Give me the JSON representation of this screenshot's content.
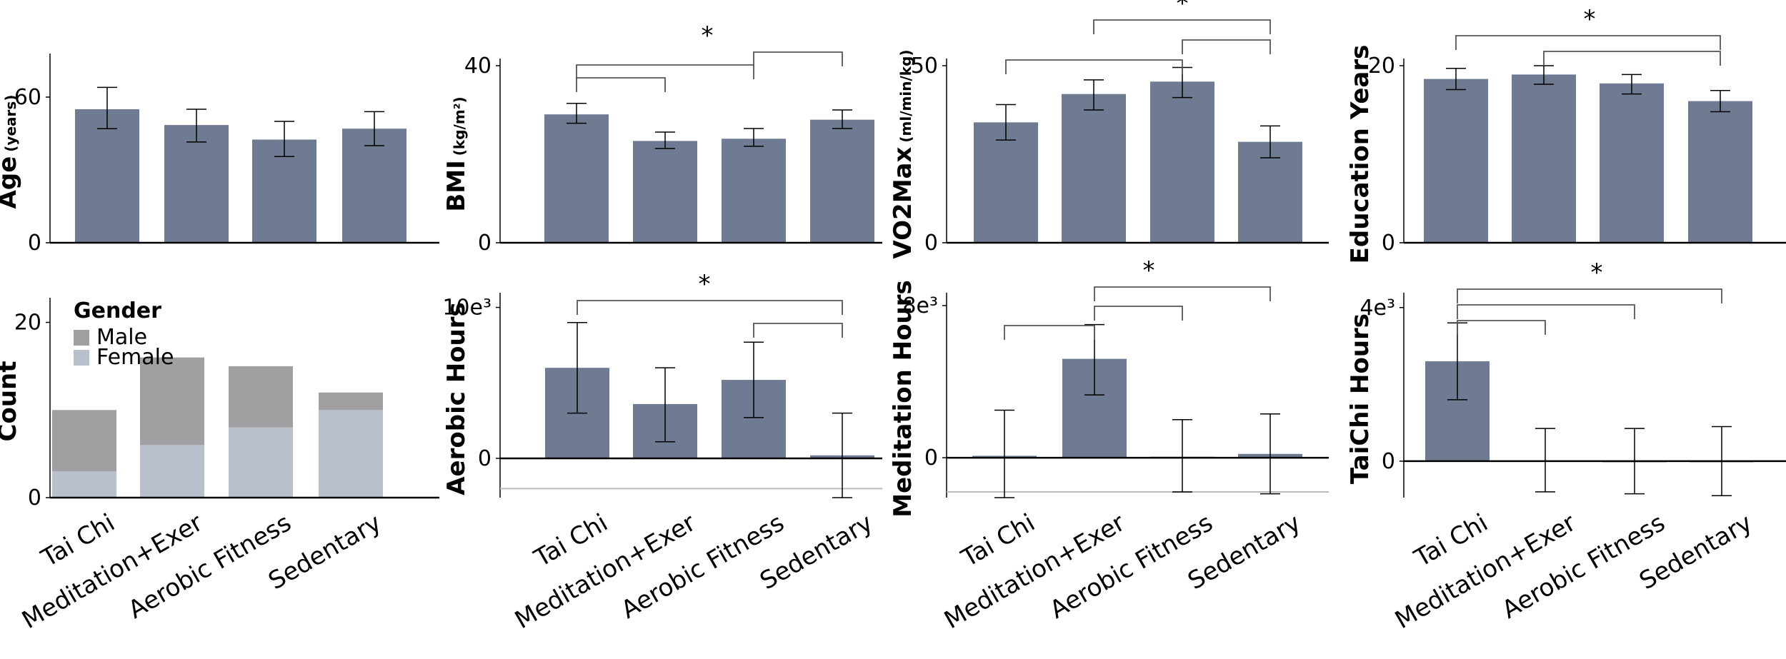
{
  "colors": {
    "bar": "#6e7b93",
    "male": "#a0a0a2",
    "female": "#b8c0cc",
    "axis": "#000000",
    "grid": "#bbbbbb"
  },
  "chart_data": [
    {
      "id": "age",
      "type": "bar",
      "ylabel_main": "Age",
      "ylabel_sub": "(years)",
      "categories": [
        "Tai Chi",
        "Meditation+Exer",
        "Aerobic Fitness",
        "Sedentary"
      ],
      "values": [
        55,
        48.5,
        42.5,
        47
      ],
      "err_low": [
        47,
        41.5,
        35.5,
        40
      ],
      "err_high": [
        64,
        55,
        50,
        54
      ],
      "ylim": [
        0,
        75
      ],
      "ticks": [
        {
          "v": 0,
          "label": "0"
        },
        {
          "v": 60,
          "label": "60"
        }
      ],
      "significance": []
    },
    {
      "id": "bmi",
      "type": "bar",
      "ylabel_main": "BMI",
      "ylabel_sub": "(kg/m²)",
      "categories": [
        "Tai Chi",
        "Meditation+Exer",
        "Aerobic Fitness",
        "Sedentary"
      ],
      "values": [
        29,
        23,
        23.5,
        27.8
      ],
      "err_low": [
        27,
        21.3,
        21.8,
        25.8
      ],
      "err_high": [
        31.5,
        25,
        25.8,
        30
      ],
      "ylim": [
        0,
        40
      ],
      "ticks": [
        {
          "v": 0,
          "label": "0"
        },
        {
          "v": 40,
          "label": "40"
        }
      ],
      "significance": [
        {
          "from": 0,
          "to": 1,
          "level": 1
        },
        {
          "from": 0,
          "to": 2,
          "level": 2
        },
        {
          "from": 2,
          "to": 3,
          "level": 3
        }
      ],
      "sig_label": "*"
    },
    {
      "id": "vo2",
      "type": "bar",
      "ylabel_main": "VO2Max",
      "ylabel_sub": "(ml/min/kg)",
      "categories": [
        "Tai Chi",
        "Meditation+Exer",
        "Aerobic Fitness",
        "Sedentary"
      ],
      "values": [
        34,
        42,
        45.5,
        28.5
      ],
      "err_low": [
        29,
        37.5,
        41,
        24
      ],
      "err_high": [
        39,
        46,
        49.5,
        33
      ],
      "ylim": [
        0,
        50
      ],
      "ticks": [
        {
          "v": 0,
          "label": "0"
        },
        {
          "v": 50,
          "label": "50"
        }
      ],
      "significance": [
        {
          "from": 0,
          "to": 2,
          "level": 1
        },
        {
          "from": 2,
          "to": 3,
          "level": 2
        },
        {
          "from": 1,
          "to": 3,
          "level": 3
        }
      ],
      "sig_label": "*"
    },
    {
      "id": "edu",
      "type": "bar",
      "ylabel_main": "Education Years",
      "ylabel_sub": "",
      "categories": [
        "Tai Chi",
        "Meditation+Exer",
        "Aerobic Fitness",
        "Sedentary"
      ],
      "values": [
        18.5,
        19,
        18,
        16
      ],
      "err_low": [
        17.3,
        17.9,
        16.8,
        14.8
      ],
      "err_high": [
        19.7,
        20,
        19,
        17.2
      ],
      "ylim": [
        0,
        20
      ],
      "ticks": [
        {
          "v": 0,
          "label": "0"
        },
        {
          "v": 20,
          "label": "20"
        }
      ],
      "significance": [
        {
          "from": 1,
          "to": 3,
          "level": 1
        },
        {
          "from": 0,
          "to": 3,
          "level": 2
        }
      ],
      "sig_label": "*"
    },
    {
      "id": "count",
      "type": "bar",
      "stacked": true,
      "ylabel_main": "Count",
      "ylabel_sub": "",
      "categories": [
        "Tai Chi",
        "Meditation+Exer",
        "Aerobic Fitness",
        "Sedentary"
      ],
      "series": [
        {
          "name": "Female",
          "values": [
            3,
            6,
            8,
            10
          ]
        },
        {
          "name": "Male",
          "values": [
            7,
            10,
            7,
            2
          ]
        }
      ],
      "legend_title": "Gender",
      "legend_order": [
        "Male",
        "Female"
      ],
      "ylim": [
        0,
        22
      ],
      "ticks": [
        {
          "v": 0,
          "label": "0"
        },
        {
          "v": 20,
          "label": "20"
        }
      ],
      "significance": []
    },
    {
      "id": "aerobic",
      "type": "bar",
      "ylabel_main": "Aerobic Hours",
      "ylabel_sub": "",
      "categories": [
        "Tai Chi",
        "Meditation+Exer",
        "Aerobic Fitness",
        "Sedentary"
      ],
      "values": [
        6000,
        3600,
        5200,
        200
      ],
      "err_low": [
        3000,
        1100,
        2700,
        -2600
      ],
      "err_high": [
        9000,
        6000,
        7700,
        3000
      ],
      "ylim": [
        -2600,
        10500
      ],
      "ticks": [
        {
          "v": 0,
          "label": "0"
        },
        {
          "v": 10000,
          "label": "10e³"
        }
      ],
      "grid_value": -2000,
      "significance": [
        {
          "from": 2,
          "to": 3,
          "level": 1
        },
        {
          "from": 0,
          "to": 3,
          "level": 2
        }
      ],
      "sig_label": "*"
    },
    {
      "id": "meditation",
      "type": "bar",
      "ylabel_main": "Meditation Hours",
      "ylabel_sub": "",
      "categories": [
        "Tai Chi",
        "Meditation+Exer",
        "Aerobic Fitness",
        "Sedentary"
      ],
      "values": [
        100,
        5200,
        50,
        200
      ],
      "err_low": [
        -2100,
        3300,
        -1800,
        -1900
      ],
      "err_high": [
        2500,
        7000,
        2000,
        2300
      ],
      "ylim": [
        -2100,
        8300
      ],
      "ticks": [
        {
          "v": 0,
          "label": "0"
        },
        {
          "v": 8000,
          "label": "8e³"
        }
      ],
      "grid_value": -1800,
      "significance": [
        {
          "from": 0,
          "to": 1,
          "level": 1
        },
        {
          "from": 1,
          "to": 2,
          "level": 2
        },
        {
          "from": 1,
          "to": 3,
          "level": 3
        }
      ],
      "sig_label": "*"
    },
    {
      "id": "taichi",
      "type": "bar",
      "ylabel_main": "TaiChi Hours",
      "ylabel_sub": "",
      "categories": [
        "Tai Chi",
        "Meditation+Exer",
        "Aerobic Fitness",
        "Sedentary"
      ],
      "values": [
        2600,
        20,
        0,
        0
      ],
      "err_low": [
        1600,
        -800,
        -850,
        -900
      ],
      "err_high": [
        3600,
        850,
        850,
        900
      ],
      "ylim": [
        -950,
        4200
      ],
      "ticks": [
        {
          "v": 0,
          "label": "0"
        },
        {
          "v": 4000,
          "label": "4e³"
        }
      ],
      "significance": [
        {
          "from": 0,
          "to": 1,
          "level": 1
        },
        {
          "from": 0,
          "to": 2,
          "level": 2
        },
        {
          "from": 0,
          "to": 3,
          "level": 3
        }
      ],
      "sig_label": "*"
    }
  ]
}
